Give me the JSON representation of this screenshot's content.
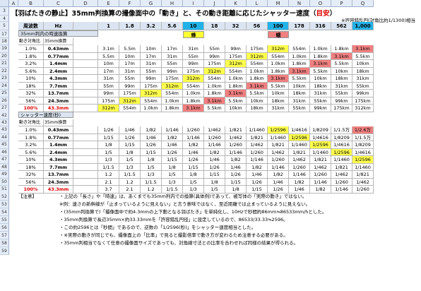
{
  "title": {
    "prefix": "【羽ばたきの静止】",
    "main": "35mm判換算の撮像面中の「動き」と、その動き距離に応じたシャッター速度（",
    "accent": "目安",
    "suffix": "）"
  },
  "subtitle": "※許容錯乱円(対角比約1/1300)相当",
  "columns": [
    "A",
    "B",
    "C",
    "D",
    "E",
    "F",
    "G",
    "H",
    "I",
    "J",
    "K",
    "L",
    "M",
    "N",
    "O",
    "P",
    "Q"
  ],
  "rows": {
    "hdr": "5",
    "s1": "17",
    "s1b": "18",
    "t1": [
      "19",
      "20",
      "21",
      "22",
      "23",
      "24",
      "25",
      "26",
      "27"
    ],
    "s2": "42",
    "t2": [
      "43",
      "44",
      "45",
      "46",
      "47",
      "48",
      "49",
      "50",
      "51"
    ],
    "notes": [
      "52",
      "53",
      "54",
      "55",
      "56",
      "57",
      "58",
      "59"
    ]
  },
  "header": {
    "wave": "周波数",
    "hz": "Hz",
    "freqs": [
      "1",
      "1.8",
      "3.2",
      "5.6",
      "10",
      "18",
      "32",
      "56",
      "100",
      "178",
      "316",
      "562",
      "1,000"
    ]
  },
  "section1": {
    "label": "35mm判内の時速換算",
    "sub1": "動き対角比",
    "sub2": "35mm換算",
    "bee": "蜂",
    "moth": "蛾"
  },
  "section2": {
    "label": "シャッター速度(秒)",
    "sub1": "動き対角比",
    "sub2": "35mm換算"
  },
  "ratios": [
    "1.0%",
    "1.8%",
    "3.2%",
    "5.6%",
    "10%",
    "18%",
    "32%",
    "56%",
    "100%"
  ],
  "mm": [
    "0.43mm",
    "0.77mm",
    "1.4mm",
    "2.4mm",
    "4.3mm",
    "7.7mm",
    "13.7mm",
    "24.3mm",
    "43.3mm"
  ],
  "table1": [
    [
      "3.1m",
      "5.5m",
      "10m",
      "17m",
      "31m",
      "55m",
      "99m",
      "175m",
      "312m",
      "554m",
      "1.0km",
      "1.8km",
      "3.1km"
    ],
    [
      "5.5m",
      "10m",
      "17m",
      "31m",
      "55m",
      "99m",
      "175m",
      "312m",
      "554m",
      "1.0km",
      "1.8km",
      "3.1km",
      "5.5km"
    ],
    [
      "10m",
      "17m",
      "31m",
      "55m",
      "99m",
      "175m",
      "312m",
      "554m",
      "1.0km",
      "1.8km",
      "3.1km",
      "5.5km",
      "10km"
    ],
    [
      "17m",
      "31m",
      "55m",
      "99m",
      "175m",
      "312m",
      "554m",
      "1.0km",
      "1.8km",
      "3.1km",
      "5.5km",
      "10km",
      "18km"
    ],
    [
      "31m",
      "55m",
      "99m",
      "175m",
      "312m",
      "554m",
      "1.0km",
      "1.8km",
      "3.1km",
      "5.5km",
      "10km",
      "18km",
      "31km"
    ],
    [
      "55m",
      "99m",
      "175m",
      "312m",
      "554m",
      "1.0km",
      "1.8km",
      "3.1km",
      "5.5km",
      "10km",
      "18km",
      "31km",
      "55km"
    ],
    [
      "99m",
      "175m",
      "312m",
      "554m",
      "1.0km",
      "1.8km",
      "3.1km",
      "5.5km",
      "10km",
      "18km",
      "31km",
      "55km",
      "99km"
    ],
    [
      "175m",
      "312m",
      "554m",
      "1.0km",
      "1.8km",
      "3.1km",
      "5.5km",
      "10km",
      "18km",
      "31km",
      "55km",
      "99km",
      "175km"
    ],
    [
      "312m",
      "554m",
      "1.0km",
      "1.8km",
      "3.1km",
      "5.5km",
      "10km",
      "18km",
      "31km",
      "55km",
      "99km",
      "175km",
      "312km"
    ]
  ],
  "table2": [
    [
      "1/26",
      "1/46",
      "1/82",
      "1/146",
      "1/260",
      "1/462",
      "1/821",
      "1/1460",
      "1/2596",
      "1/4616",
      "1/8209",
      "1/1.5万",
      "1/2.6万"
    ],
    [
      "1/15",
      "1/26",
      "1/46",
      "1/82",
      "1/146",
      "1/260",
      "1/462",
      "1/821",
      "1/1460",
      "1/2596",
      "1/4616",
      "1/8209",
      "1/1.5万"
    ],
    [
      "1/8",
      "1/15",
      "1/26",
      "1/46",
      "1/82",
      "1/146",
      "1/260",
      "1/462",
      "1/821",
      "1/1460",
      "1/2596",
      "1/4616",
      "1/8209"
    ],
    [
      "1/5",
      "1/8",
      "1/15",
      "1/26",
      "1/46",
      "1/82",
      "1/146",
      "1/260",
      "1/462",
      "1/821",
      "1/1460",
      "1/2596",
      "1/4616"
    ],
    [
      "1/3",
      "1/5",
      "1/8",
      "1/15",
      "1/26",
      "1/46",
      "1/82",
      "1/146",
      "1/260",
      "1/462",
      "1/821",
      "1/1460",
      "1/2596"
    ],
    [
      "1/1.5",
      "1/3",
      "1/5",
      "1/8",
      "1/15",
      "1/26",
      "1/46",
      "1/82",
      "1/146",
      "1/260",
      "1/462",
      "1/821",
      "1/1460"
    ],
    [
      "1.2",
      "1/1.5",
      "1/3",
      "1/5",
      "1/8",
      "1/15",
      "1/26",
      "1/46",
      "1/82",
      "1/146",
      "1/260",
      "1/462",
      "1/821"
    ],
    [
      "2.1",
      "1.2",
      "1/1.5",
      "1/3",
      "1/5",
      "1/8",
      "1/15",
      "1/26",
      "1/46",
      "1/82",
      "1/146",
      "1/260",
      "1/462"
    ],
    [
      "3.7",
      "2.1",
      "1.2",
      "1/1.5",
      "1/3",
      "1/5",
      "1/8",
      "1/15",
      "1/26",
      "1/46",
      "1/82",
      "1/146",
      "1/260"
    ]
  ],
  "notes": {
    "label": "【注意】",
    "lines": [
      "・上記の「長さ」や「時速」は、あくまでも35mm判内での換算(具体例)であって、被写体の「実際の動き」ではない。",
      "※例：速さの新幹線が「止まっているように見えない」と言う意味ではなく、至近距離では止まっているように見えない。",
      "・(35mm判換算で)「撮像面中で約4.3mmの上下動となる羽ばたき」を単純化し、10Hzで秒間約86mm≒86533mm/hとした。",
      "・35mm判換算で長辺35mm×約33.33mmを「許容錯乱円径」に設定しているので、86533/33.33≒2596。",
      "・この約2596とは「秒間」であるので、逆数の「1/2596(秒)」をシャッター速度相当とした。",
      "・※実際の動きが同じでも、撮像面上の「比率」で見ると撮影倍率で動き方が変わるため注意する必要がある。",
      "・35mm判相当でなくて任意の撮像面サイズであっても、対角線寸法との比率を合わせれば同様の結果が得られる。"
    ]
  }
}
